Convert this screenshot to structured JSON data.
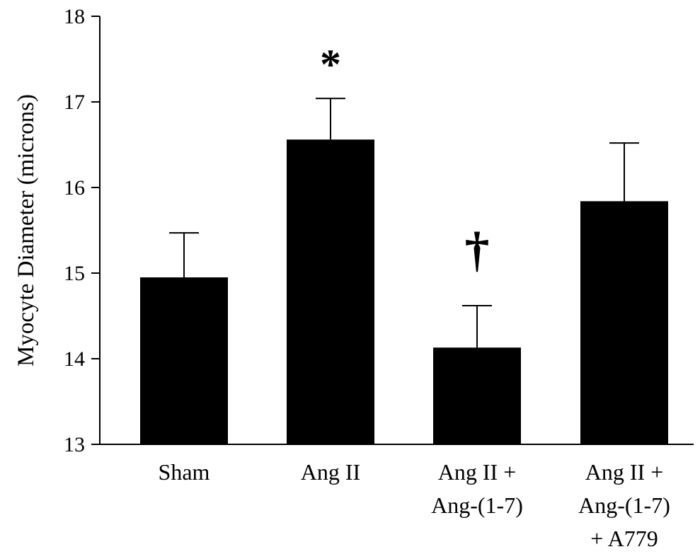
{
  "chart_data": {
    "type": "bar",
    "title": "",
    "xlabel": "",
    "ylabel": "Myocyte Diameter (microns)",
    "ylim": [
      13,
      18
    ],
    "yticks": [
      "13",
      "14",
      "15",
      "16",
      "17",
      "18"
    ],
    "grid": false,
    "categories": [
      [
        "Sham"
      ],
      [
        "Ang II"
      ],
      [
        "Ang II +",
        "Ang-(1-7)"
      ],
      [
        "Ang II +",
        "Ang-(1-7)",
        "+ A779"
      ]
    ],
    "values": [
      14.95,
      16.56,
      14.13,
      15.84
    ],
    "error_upper": [
      0.52,
      0.48,
      0.49,
      0.68
    ],
    "annotations": [
      "",
      "*",
      "†",
      ""
    ],
    "bar_color": "#000000"
  }
}
